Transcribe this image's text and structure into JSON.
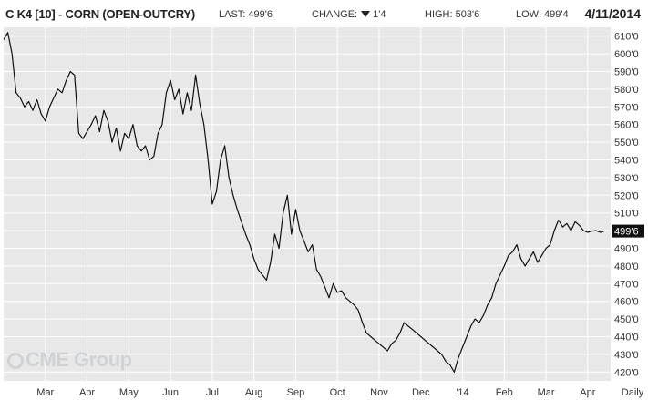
{
  "header": {
    "title": "C K4 [10] - CORN (OPEN-OUTCRY)",
    "last_label": "LAST:",
    "last_value": "499'6",
    "change_label": "CHANGE:",
    "change_value": "1'4",
    "high_label": "HIGH:",
    "high_value": "503'6",
    "low_label": "LOW:",
    "low_value": "499'4",
    "date": "4/11/2014"
  },
  "watermark": "CME Group",
  "colors": {
    "plot_bg": "#e8e8e8",
    "grid": "#ffffff",
    "line": "#111111",
    "last_badge_bg": "#111111",
    "last_badge_text": "#ffffff"
  },
  "chart_data": {
    "type": "line",
    "interval_label": "Daily",
    "ylim": [
      415,
      615
    ],
    "y_ticks": [
      "420'0",
      "430'0",
      "440'0",
      "450'0",
      "460'0",
      "470'0",
      "480'0",
      "490'0",
      "500'0",
      "510'0",
      "520'0",
      "530'0",
      "540'0",
      "550'0",
      "560'0",
      "570'0",
      "580'0",
      "590'0",
      "600'0",
      "610'0"
    ],
    "y_tick_values": [
      420,
      430,
      440,
      450,
      460,
      470,
      480,
      490,
      500,
      510,
      520,
      530,
      540,
      550,
      560,
      570,
      580,
      590,
      600,
      610
    ],
    "last_value": 499.75,
    "last_label": "499'6",
    "months": [
      "Mar",
      "Apr",
      "May",
      "Jun",
      "Jul",
      "Aug",
      "Sep",
      "Oct",
      "Nov",
      "Dec",
      "'14",
      "Feb",
      "Mar",
      "Apr"
    ],
    "month_positions": [
      1,
      2,
      3,
      4,
      5,
      6,
      7,
      8,
      9,
      10,
      11,
      12,
      13,
      14
    ],
    "x_range": [
      0,
      14.55
    ],
    "series": [
      {
        "x": [
          0.0,
          0.1,
          0.2,
          0.3,
          0.4,
          0.5,
          0.6,
          0.7,
          0.8,
          0.9,
          1.0,
          1.1,
          1.2,
          1.3,
          1.4,
          1.5,
          1.6,
          1.7,
          1.8,
          1.9,
          2.0,
          2.1,
          2.2,
          2.3,
          2.4,
          2.5,
          2.6,
          2.7,
          2.8,
          2.9,
          3.0,
          3.1,
          3.2,
          3.3,
          3.4,
          3.5,
          3.6,
          3.7,
          3.8,
          3.9,
          4.0,
          4.1,
          4.2,
          4.3,
          4.4,
          4.5,
          4.6,
          4.7,
          4.8,
          4.9,
          5.0,
          5.1,
          5.2,
          5.3,
          5.4,
          5.5,
          5.6,
          5.7,
          5.8,
          5.9,
          6.0,
          6.1,
          6.2,
          6.3,
          6.4,
          6.5,
          6.6,
          6.7,
          6.8,
          6.9,
          7.0,
          7.1,
          7.2,
          7.3,
          7.4,
          7.5,
          7.6,
          7.7,
          7.8,
          7.9,
          8.0,
          8.1,
          8.2,
          8.3,
          8.4,
          8.5,
          8.6,
          8.7,
          8.8,
          8.9,
          9.0,
          9.1,
          9.2,
          9.3,
          9.4,
          9.5,
          9.6,
          9.7,
          9.8,
          9.9,
          10.0,
          10.1,
          10.2,
          10.3,
          10.4,
          10.5,
          10.6,
          10.7,
          10.8,
          10.9,
          11.0,
          11.1,
          11.2,
          11.3,
          11.4,
          11.5,
          11.6,
          11.7,
          11.8,
          11.9,
          12.0,
          12.1,
          12.2,
          12.3,
          12.4,
          12.5,
          12.6,
          12.7,
          12.8,
          12.9,
          13.0,
          13.1,
          13.2,
          13.3,
          13.4,
          13.5,
          13.6,
          13.7,
          13.8,
          13.9,
          14.0,
          14.1,
          14.2,
          14.3,
          14.4
        ],
        "values": [
          608,
          612,
          600,
          578,
          575,
          570,
          573,
          568,
          574,
          566,
          562,
          570,
          575,
          580,
          578,
          585,
          590,
          588,
          555,
          552,
          556,
          560,
          565,
          556,
          568,
          562,
          550,
          558,
          545,
          555,
          552,
          560,
          548,
          545,
          548,
          540,
          542,
          555,
          560,
          578,
          585,
          574,
          580,
          566,
          578,
          568,
          588,
          572,
          560,
          540,
          515,
          522,
          540,
          548,
          530,
          520,
          512,
          505,
          498,
          492,
          484,
          478,
          475,
          472,
          482,
          498,
          490,
          510,
          520,
          498,
          512,
          500,
          494,
          488,
          492,
          478,
          474,
          468,
          462,
          470,
          465,
          466,
          462,
          460,
          458,
          455,
          448,
          442,
          440,
          438,
          436,
          434,
          432,
          436,
          438,
          442,
          448,
          446,
          444,
          442,
          440,
          438,
          436,
          434,
          432,
          430,
          426,
          424,
          420,
          428,
          434,
          440,
          446,
          450,
          448,
          452,
          458,
          462,
          470,
          475,
          480,
          486,
          488,
          492,
          484,
          480,
          484,
          488,
          482,
          486,
          490,
          492,
          500,
          506,
          502,
          504,
          500,
          505,
          503,
          500,
          499,
          499.75,
          500,
          499,
          499.75
        ]
      }
    ]
  }
}
